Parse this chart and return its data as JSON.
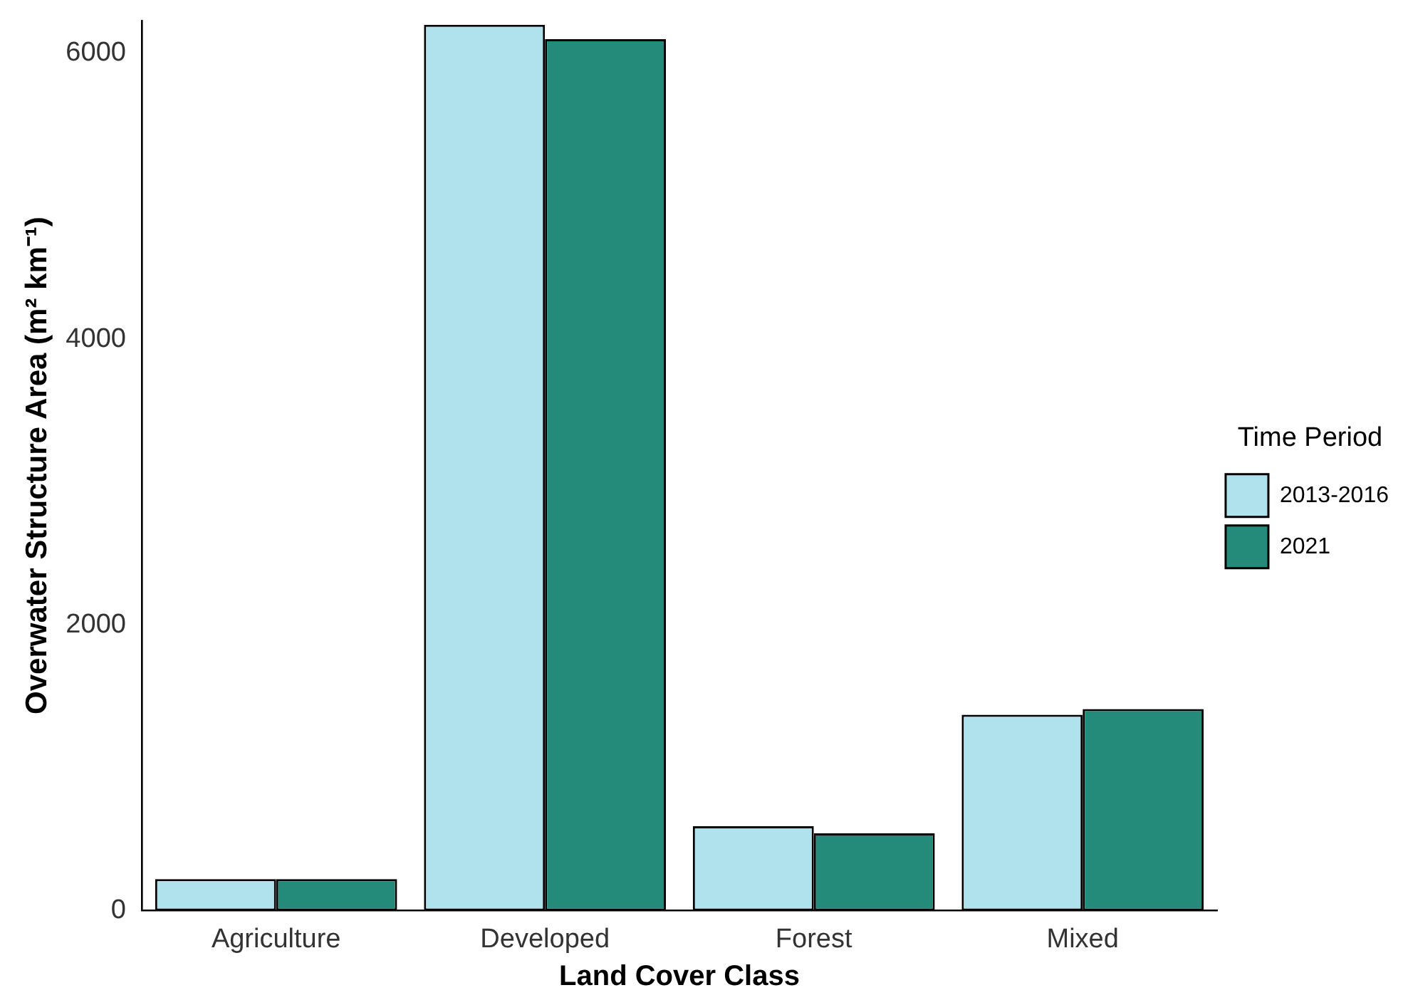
{
  "chart_data": {
    "type": "bar",
    "xlabel": "Land Cover Class",
    "ylabel": "Overwater Structure Area (m² km⁻¹)",
    "legend_title": "Time Period",
    "legend": "right",
    "categories": [
      "Agriculture",
      "Developed",
      "Forest",
      "Mixed"
    ],
    "series": [
      {
        "name": "2013-2016",
        "color": "#b0e2ee",
        "values": [
          220,
          6200,
          590,
          1370
        ]
      },
      {
        "name": "2021",
        "color": "#248a7a",
        "values": [
          220,
          6100,
          540,
          1410
        ]
      }
    ],
    "ylim": [
      0,
      6230
    ],
    "yticks": [
      0,
      2000,
      4000,
      6000
    ],
    "grid": false
  }
}
